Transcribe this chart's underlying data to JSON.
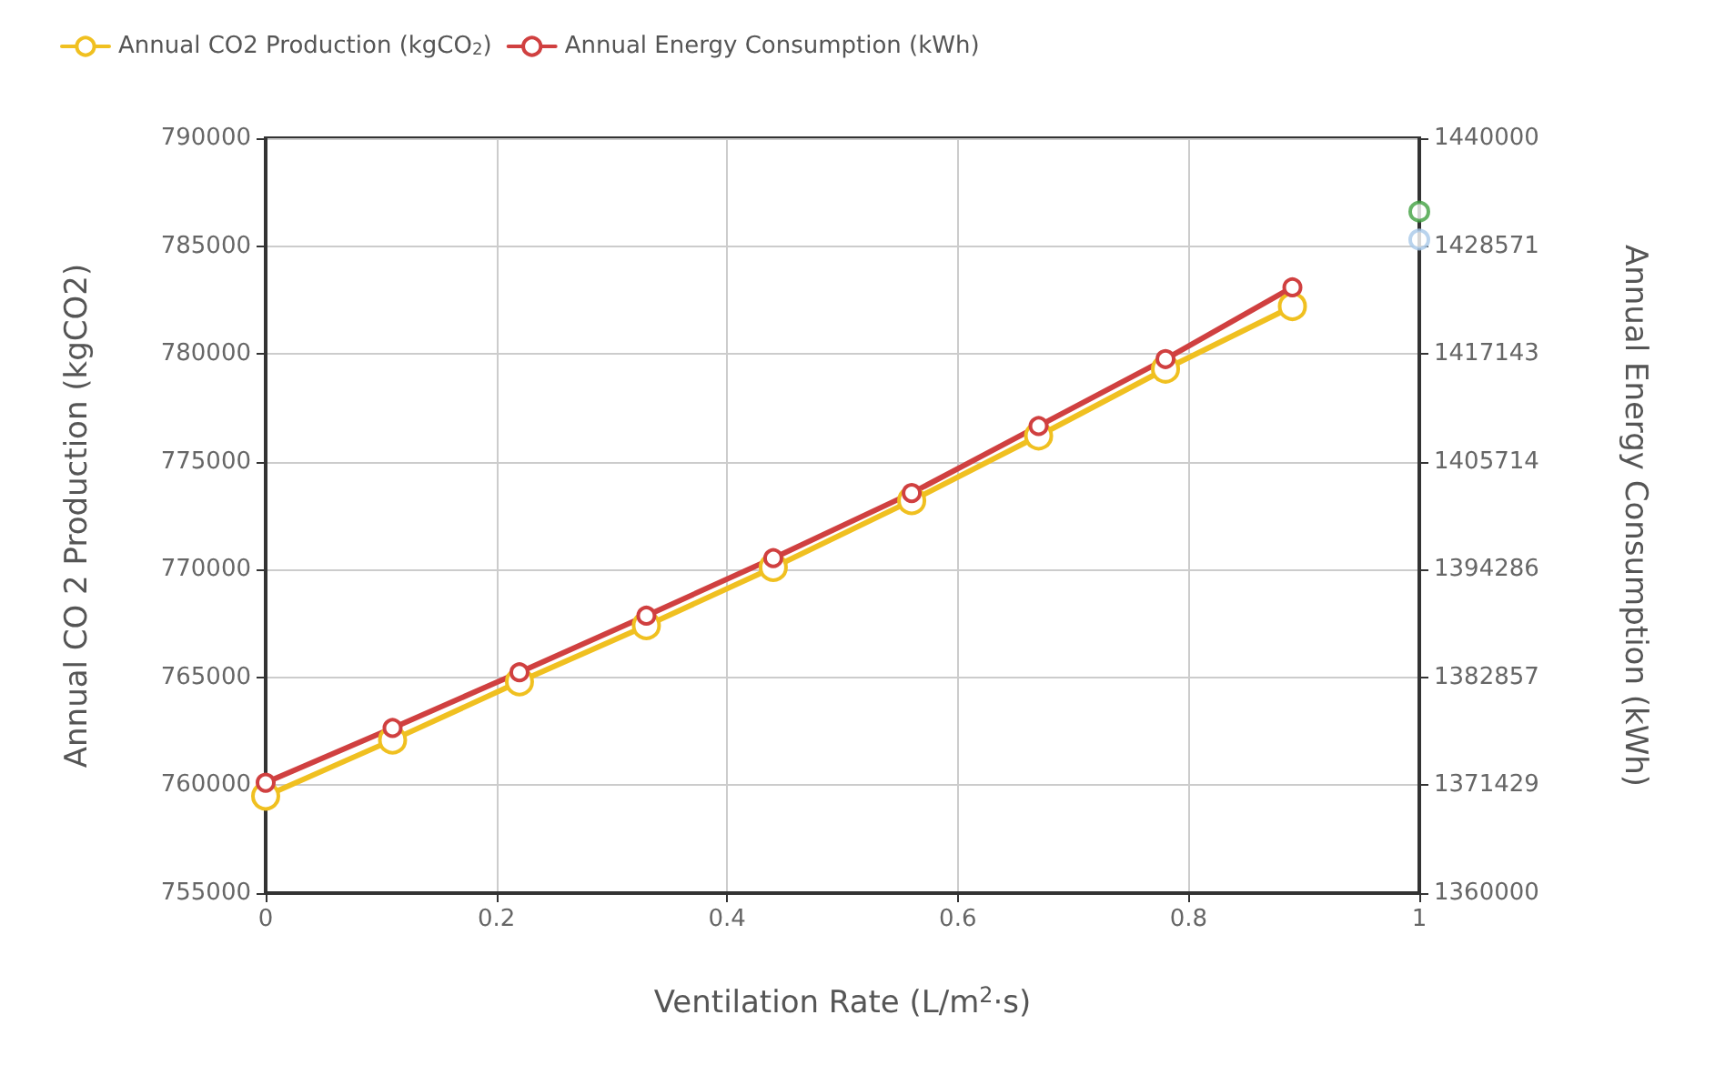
{
  "chart_data": {
    "type": "line",
    "xlabel": "Ventilation Rate (L/m$^{2}$·s)",
    "ylabel": "Annual CO 2 Production (kgCO2)",
    "y2label": "Annual Energy Consumption (kWh)",
    "xlim": [
      0,
      1
    ],
    "xticks": [
      0,
      0.2,
      0.4,
      0.6,
      0.8,
      1.0
    ],
    "ylim": [
      755000,
      790000
    ],
    "yticks": [
      755000,
      760000,
      765000,
      770000,
      775000,
      780000,
      785000,
      790000
    ],
    "y2lim": [
      1360000,
      1440000
    ],
    "y2ticks": [
      1360000,
      1371429,
      1382857,
      1394286,
      1405714,
      1417143,
      1428571,
      1440000
    ],
    "grid": true,
    "legend": "top left",
    "marker": "circle",
    "line_style": "solid",
    "series": [
      {
        "name": "Annual CO2 Production (kgCO$_{2}$)",
        "color": "#f0c020",
        "x": [
          0,
          0.11,
          0.22,
          0.33,
          0.44,
          0.56,
          0.67,
          0.78,
          0.89
        ],
        "values": [
          759500,
          762100,
          764800,
          767400,
          770100,
          773200,
          776200,
          779300,
          782200
        ]
      },
      {
        "name": "Annual Energy Consumption (kWh)",
        "color": "#d04040",
        "axis": "y2",
        "x": [
          0,
          0.11,
          0.22,
          0.33,
          0.44,
          0.56,
          0.67,
          0.78,
          0.89
        ],
        "values": [
          1371700,
          1377500,
          1383400,
          1389400,
          1395500,
          1402400,
          1409500,
          1416600,
          1424200
        ]
      },
      {
        "type": "scatter",
        "color": "#40a040",
        "x": [
          1.0
        ],
        "values": [
          786600
        ]
      },
      {
        "type": "scatter",
        "color": "#a8c8e8",
        "x": [
          1.0
        ],
        "values": [
          785300
        ]
      }
    ]
  }
}
